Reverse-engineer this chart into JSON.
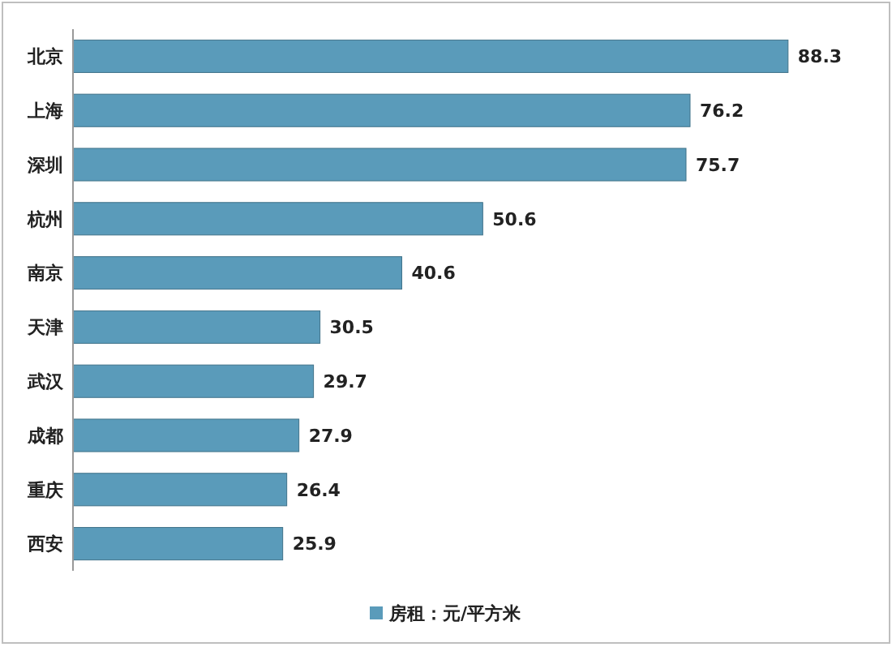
{
  "chart_data": {
    "type": "bar",
    "orientation": "horizontal",
    "categories": [
      "北京",
      "上海",
      "深圳",
      "杭州",
      "南京",
      "天津",
      "武汉",
      "成都",
      "重庆",
      "西安"
    ],
    "series": [
      {
        "name": "房租：元/平方米",
        "color": "#5a9bba",
        "values": [
          88.3,
          76.2,
          75.7,
          50.6,
          40.6,
          30.5,
          29.7,
          27.9,
          26.4,
          25.9
        ]
      }
    ],
    "data_labels": true,
    "legend": "bottom",
    "grid": false
  }
}
